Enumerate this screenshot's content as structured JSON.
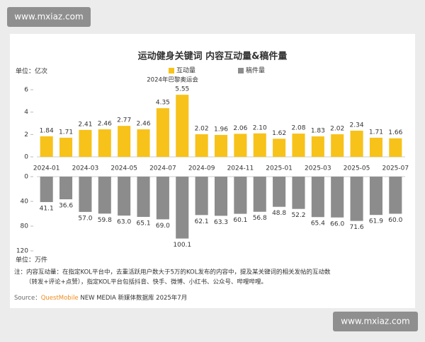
{
  "watermarks": [
    "www.mxiaz.com",
    "www.mxiaz.com"
  ],
  "chart_data": {
    "type": "bar",
    "title": "运动健身关键词 内容互动量&稿件量",
    "y_label": "单位：亿次",
    "y2_label": "单位：万件",
    "annotation": "2024年巴黎奥运会",
    "categories": [
      "2024-01",
      null,
      "2024-03",
      null,
      "2024-05",
      null,
      "2024-07",
      null,
      "2024-09",
      null,
      "2024-11",
      null,
      "2025-01",
      null,
      "2025-03",
      null,
      "2025-05",
      null,
      "2025-07"
    ],
    "series": [
      {
        "name": "互动量",
        "color": "#f7c21a",
        "values": [
          1.84,
          1.71,
          2.41,
          2.46,
          2.77,
          2.46,
          4.35,
          5.55,
          2.02,
          1.96,
          2.06,
          2.1,
          1.62,
          2.08,
          1.83,
          2.02,
          2.34,
          1.71,
          1.66
        ],
        "value_labels": [
          "1.84",
          "1.71",
          "2.41",
          "2.46",
          "2.77",
          "2.46",
          "4.35",
          "5.55",
          "2.02",
          "1.96",
          "2.06",
          "2.10",
          "1.62",
          "2.08",
          "1.83",
          "2.02",
          "2.34",
          "1.71",
          "1.66"
        ]
      },
      {
        "name": "稿件量",
        "color": "#8c8c8c",
        "axis": "y2",
        "values": [
          41.1,
          36.6,
          57,
          59.8,
          63,
          65.1,
          69,
          100.1,
          62.1,
          63.3,
          60.1,
          56.8,
          48.8,
          52.2,
          65.4,
          66,
          71.6,
          61.9,
          60
        ],
        "value_labels": [
          "41.1",
          "36.6",
          "57.0",
          "59.8",
          "63.0",
          "65.1",
          "69.0",
          "100.1",
          "62.1",
          "63.3",
          "60.1",
          "56.8",
          "48.8",
          "52.2",
          "65.4",
          "66.0",
          "71.6",
          "61.9",
          "60.0"
        ]
      }
    ],
    "ylim": [
      0,
      6
    ],
    "yticks": [
      0,
      2,
      4,
      6
    ],
    "y2lim": [
      0,
      120
    ],
    "y2ticks": [
      0,
      40,
      80,
      120
    ],
    "grid": false
  },
  "footer": {
    "notes": [
      "注：内容互动量：在指定KOL平台中，去重活跃用户数大于5万的KOL发布的内容中，提及某关键词的相关发帖的互动数",
      "（转发+评论+点赞），指定KOL平台包括抖音、快手、微博、小红书、公众号、哔哩哔哩。"
    ],
    "source": [
      "Source：",
      "QuestMobile",
      " NEW MEDIA 新媒体数据库 2025年7月"
    ]
  }
}
